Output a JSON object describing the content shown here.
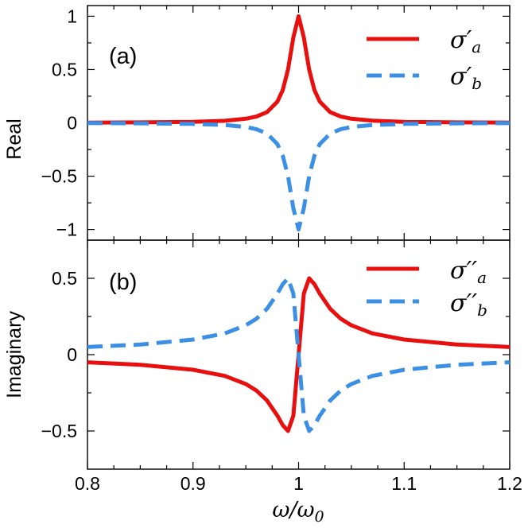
{
  "chart_data": [
    {
      "type": "line",
      "panel_label": "(a)",
      "ylabel": "Real",
      "xlabel": "ω/ω0",
      "xlim": [
        0.8,
        1.2
      ],
      "ylim": [
        -1.1,
        1.1
      ],
      "xticks": [
        0.8,
        0.9,
        1,
        1.1,
        1.2
      ],
      "xtick_labels": [
        "0.8",
        "0.9",
        "1",
        "1.1",
        "1.2"
      ],
      "yticks": [
        1,
        0.5,
        0,
        -0.5,
        -1
      ],
      "ytick_labels": [
        "1",
        "0.5",
        "0",
        "−0.5",
        "−1"
      ],
      "legend_position": "top-right",
      "series": [
        {
          "name": "σ'a",
          "symbol": "σ",
          "prime": "′",
          "subscript": "a",
          "color": "#e8100f",
          "style": "solid",
          "x": [
            0.8,
            0.85,
            0.9,
            0.93,
            0.95,
            0.96,
            0.97,
            0.98,
            0.985,
            0.99,
            0.995,
            1.0,
            1.005,
            1.01,
            1.015,
            1.02,
            1.03,
            1.04,
            1.05,
            1.07,
            1.1,
            1.15,
            1.2
          ],
          "values": [
            0.0025,
            0.0044,
            0.01,
            0.0196,
            0.0385,
            0.0588,
            0.1,
            0.2,
            0.308,
            0.5,
            0.8,
            1.0,
            0.8,
            0.5,
            0.308,
            0.2,
            0.1,
            0.0588,
            0.0385,
            0.02,
            0.01,
            0.0044,
            0.0025
          ]
        },
        {
          "name": "σ'b",
          "symbol": "σ",
          "prime": "′",
          "subscript": "b",
          "color": "#3b8fe5",
          "style": "dashed",
          "x": [
            0.8,
            0.85,
            0.9,
            0.93,
            0.95,
            0.96,
            0.97,
            0.98,
            0.985,
            0.99,
            0.995,
            1.0,
            1.005,
            1.01,
            1.015,
            1.02,
            1.03,
            1.04,
            1.05,
            1.07,
            1.1,
            1.15,
            1.2
          ],
          "values": [
            -0.0025,
            -0.0044,
            -0.01,
            -0.0196,
            -0.0385,
            -0.0588,
            -0.1,
            -0.2,
            -0.308,
            -0.5,
            -0.8,
            -1.0,
            -0.8,
            -0.5,
            -0.308,
            -0.2,
            -0.1,
            -0.0588,
            -0.0385,
            -0.02,
            -0.01,
            -0.0044,
            -0.0025
          ]
        }
      ]
    },
    {
      "type": "line",
      "panel_label": "(b)",
      "ylabel": "Imaginary",
      "xlabel": "ω/ω0",
      "xlim": [
        0.8,
        1.2
      ],
      "ylim": [
        -0.75,
        0.75
      ],
      "xticks": [
        0.8,
        0.9,
        1,
        1.1,
        1.2
      ],
      "xtick_labels": [
        "0.8",
        "0.9",
        "1",
        "1.1",
        "1.2"
      ],
      "yticks": [
        0.5,
        0,
        -0.5
      ],
      "ytick_labels": [
        "0.5",
        "0",
        "−0.5"
      ],
      "legend_position": "top-right",
      "series": [
        {
          "name": "σ''a",
          "symbol": "σ",
          "prime": "′′",
          "subscript": "a",
          "color": "#e8100f",
          "style": "solid",
          "x": [
            0.8,
            0.85,
            0.9,
            0.93,
            0.95,
            0.96,
            0.97,
            0.98,
            0.985,
            0.99,
            0.995,
            1.0,
            1.005,
            1.01,
            1.015,
            1.02,
            1.03,
            1.04,
            1.05,
            1.07,
            1.1,
            1.15,
            1.2
          ],
          "values": [
            -0.05,
            -0.066,
            -0.099,
            -0.139,
            -0.192,
            -0.235,
            -0.3,
            -0.4,
            -0.462,
            -0.5,
            -0.4,
            0.0,
            0.4,
            0.5,
            0.462,
            0.4,
            0.3,
            0.235,
            0.192,
            0.139,
            0.099,
            0.066,
            0.05
          ]
        },
        {
          "name": "σ''b",
          "symbol": "σ",
          "prime": "′′",
          "subscript": "b",
          "color": "#3b8fe5",
          "style": "dashed",
          "x": [
            0.8,
            0.85,
            0.9,
            0.93,
            0.95,
            0.96,
            0.97,
            0.98,
            0.985,
            0.99,
            0.995,
            1.0,
            1.005,
            1.01,
            1.015,
            1.02,
            1.03,
            1.04,
            1.05,
            1.07,
            1.1,
            1.15,
            1.2
          ],
          "values": [
            0.05,
            0.066,
            0.099,
            0.139,
            0.192,
            0.235,
            0.3,
            0.4,
            0.462,
            0.5,
            0.4,
            0.0,
            -0.4,
            -0.5,
            -0.462,
            -0.4,
            -0.3,
            -0.235,
            -0.192,
            -0.139,
            -0.099,
            -0.066,
            -0.05
          ]
        }
      ]
    }
  ],
  "axis": {
    "xlabel_main": "ω/ω",
    "xlabel_sub": "0"
  }
}
